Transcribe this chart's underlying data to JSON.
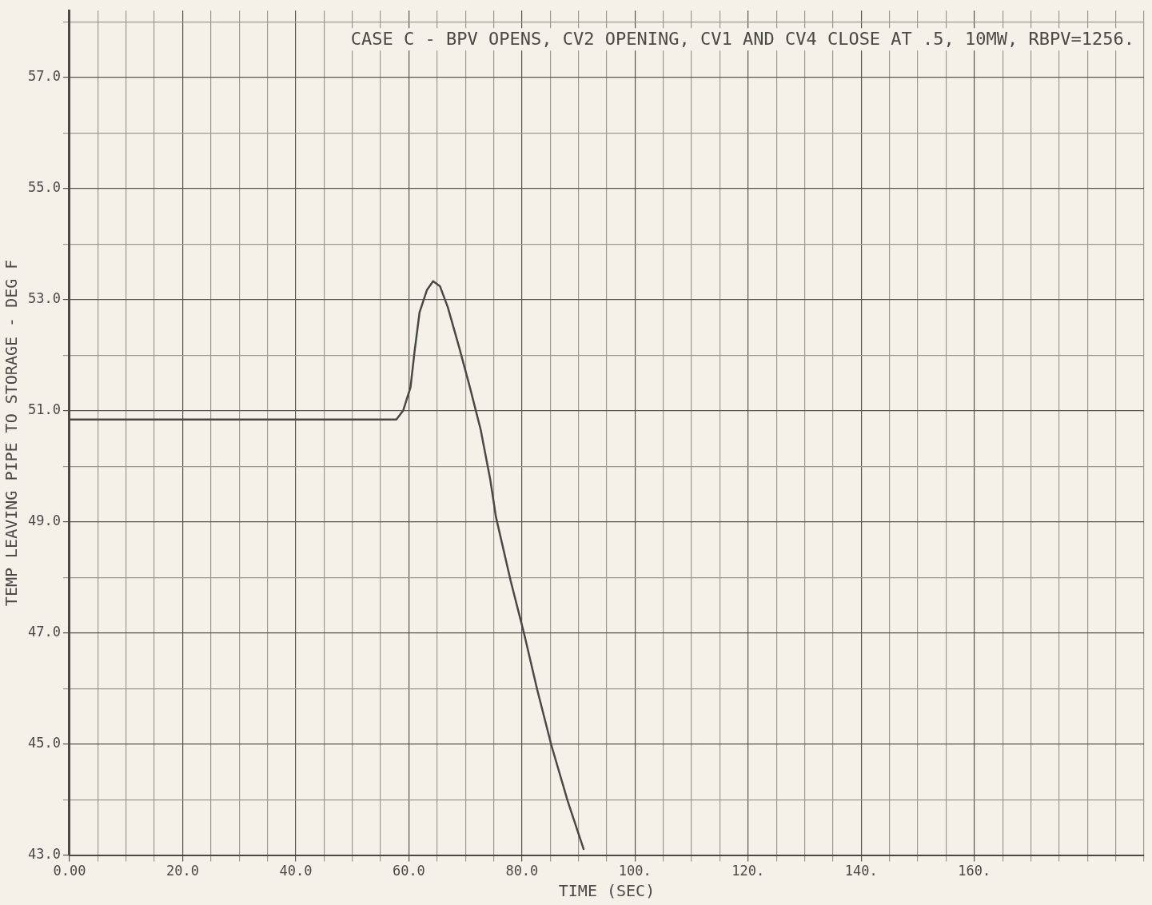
{
  "chart_data": {
    "type": "line",
    "title": "CASE C - BPV OPENS, CV2 OPENING, CV1 AND CV4 CLOSE AT .5, 10MW, RBPV=1256.",
    "xlabel": "TIME (SEC)",
    "ylabel": "TEMP LEAVING PIPE TO STORAGE - DEG F",
    "series": [
      {
        "color": "#4a4a44",
        "x": [
          0,
          57.8,
          59.0,
          60.3,
          61.0,
          61.9,
          63.2,
          64.3,
          65.5,
          66.9,
          68.9,
          70.8,
          72.7,
          74.4,
          75.4,
          78.0,
          80.4,
          82.7,
          85.2,
          88.1,
          90.9
        ],
        "values": [
          50.84,
          50.84,
          51.0,
          51.42,
          52.05,
          52.77,
          53.17,
          53.33,
          53.24,
          52.86,
          52.14,
          51.42,
          50.66,
          49.76,
          49.09,
          47.94,
          46.98,
          45.98,
          44.98,
          43.97,
          43.11
        ]
      }
    ],
    "xlim": [
      0,
      190
    ],
    "ylim": [
      43,
      58.2
    ],
    "xticks": [
      {
        "value": 0,
        "label": "0.00"
      },
      {
        "value": 5,
        "label": null
      },
      {
        "value": 10,
        "label": null
      },
      {
        "value": 15,
        "label": null
      },
      {
        "value": 20,
        "label": "20.0"
      },
      {
        "value": 25,
        "label": null
      },
      {
        "value": 30,
        "label": null
      },
      {
        "value": 35,
        "label": null
      },
      {
        "value": 40,
        "label": "40.0"
      },
      {
        "value": 45,
        "label": null
      },
      {
        "value": 50,
        "label": null
      },
      {
        "value": 55,
        "label": null
      },
      {
        "value": 60,
        "label": "60.0"
      },
      {
        "value": 65,
        "label": null
      },
      {
        "value": 70,
        "label": null
      },
      {
        "value": 75,
        "label": null
      },
      {
        "value": 80,
        "label": "80.0"
      },
      {
        "value": 85,
        "label": null
      },
      {
        "value": 90,
        "label": null
      },
      {
        "value": 95,
        "label": null
      },
      {
        "value": 100,
        "label": "100."
      },
      {
        "value": 105,
        "label": null
      },
      {
        "value": 110,
        "label": null
      },
      {
        "value": 115,
        "label": null
      },
      {
        "value": 120,
        "label": "120."
      },
      {
        "value": 125,
        "label": null
      },
      {
        "value": 130,
        "label": null
      },
      {
        "value": 135,
        "label": null
      },
      {
        "value": 140,
        "label": "140."
      },
      {
        "value": 145,
        "label": null
      },
      {
        "value": 150,
        "label": null
      },
      {
        "value": 155,
        "label": null
      },
      {
        "value": 160,
        "label": "160."
      },
      {
        "value": 165,
        "label": null
      },
      {
        "value": 170,
        "label": null
      },
      {
        "value": 175,
        "label": null
      },
      {
        "value": 180,
        "label": null
      },
      {
        "value": 185,
        "label": null
      },
      {
        "value": 190,
        "label": null
      }
    ],
    "yticks": [
      {
        "value": 43,
        "label": "43.0"
      },
      {
        "value": 44,
        "label": null
      },
      {
        "value": 45,
        "label": "45.0"
      },
      {
        "value": 46,
        "label": null
      },
      {
        "value": 47,
        "label": "47.0"
      },
      {
        "value": 48,
        "label": null
      },
      {
        "value": 49,
        "label": "49.0"
      },
      {
        "value": 50,
        "label": null
      },
      {
        "value": 51,
        "label": "51.0"
      },
      {
        "value": 52,
        "label": null
      },
      {
        "value": 53,
        "label": "53.0"
      },
      {
        "value": 54,
        "label": null
      },
      {
        "value": 55,
        "label": "55.0"
      },
      {
        "value": 56,
        "label": null
      },
      {
        "value": 57,
        "label": "57.0"
      },
      {
        "value": 58,
        "label": null
      }
    ],
    "grid": true,
    "legend": false,
    "marker": "none",
    "line_style": "solid"
  }
}
